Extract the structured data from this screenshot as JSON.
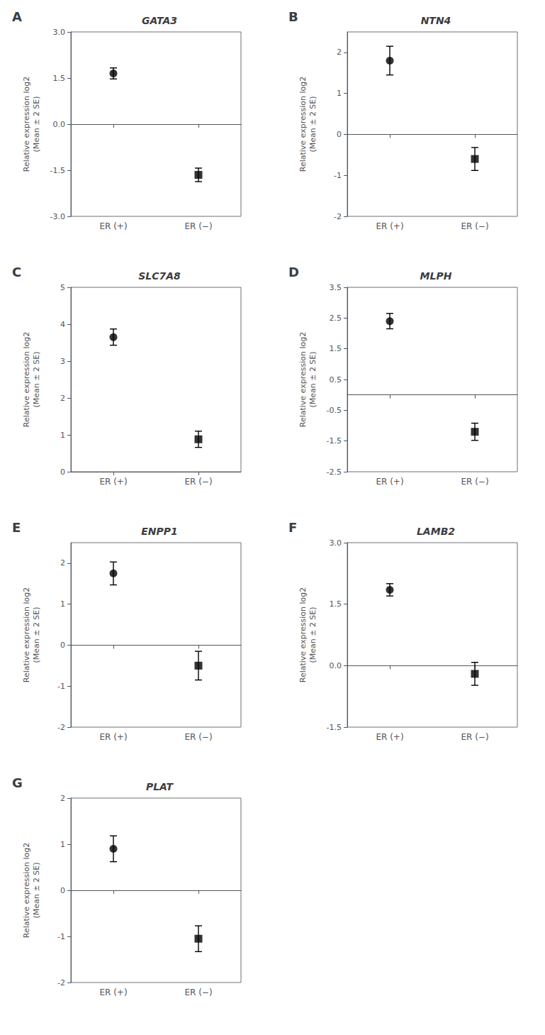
{
  "chart_data": [
    {
      "type": "scatter",
      "title": "GATA3",
      "annotations": [
        "A"
      ],
      "ylabel": "Relative expression log2\n(Mean ± 2 SE)",
      "categories": [
        "ER (+)",
        "ER (−)"
      ],
      "series": [
        {
          "values": [
            1.65,
            null
          ],
          "errors": [
            0.18,
            null
          ],
          "marker": "circle"
        },
        {
          "values": [
            null,
            -1.65
          ],
          "errors": [
            null,
            0.22
          ],
          "marker": "square"
        }
      ],
      "ylim": [
        -3.0,
        3.0
      ],
      "yticks": [
        {
          "value": -3.0,
          "label": "-3.0"
        },
        -1.5,
        {
          "value": 0.0,
          "label": "0.0"
        },
        1.5,
        {
          "value": 3.0,
          "label": "3.0"
        }
      ],
      "grid": false,
      "color": "black"
    },
    {
      "type": "scatter",
      "title": "NTN4",
      "annotations": [
        "B"
      ],
      "ylabel": "Relative expression log2\n(Mean ± 2 SE)",
      "categories": [
        "ER (+)",
        "ER (−)"
      ],
      "series": [
        {
          "values": [
            1.8,
            null
          ],
          "errors": [
            0.35,
            null
          ],
          "marker": "circle"
        },
        {
          "values": [
            null,
            -0.6
          ],
          "errors": [
            null,
            0.28
          ],
          "marker": "square"
        }
      ],
      "ylim": [
        -2.0,
        2.5
      ],
      "yticks": [
        -2,
        -1,
        0,
        1,
        2
      ],
      "grid": false,
      "color": "black"
    },
    {
      "type": "scatter",
      "title": "SLC7A8",
      "annotations": [
        "C"
      ],
      "ylabel": "Relative expression log2\n(Mean ± 2 SE)",
      "categories": [
        "ER (+)",
        "ER (−)"
      ],
      "series": [
        {
          "values": [
            3.65,
            null
          ],
          "errors": [
            0.22,
            null
          ],
          "marker": "circle"
        },
        {
          "values": [
            null,
            0.88
          ],
          "errors": [
            null,
            0.22
          ],
          "marker": "square"
        }
      ],
      "ylim": [
        0.0,
        5.0
      ],
      "yticks": [
        0,
        1,
        2,
        3,
        4,
        5
      ],
      "grid": false,
      "color": "black"
    },
    {
      "type": "scatter",
      "title": "MLPH",
      "annotations": [
        "D"
      ],
      "ylabel": "Relative expression log2\n(Mean ± 2 SE)",
      "categories": [
        "ER (+)",
        "ER (−)"
      ],
      "series": [
        {
          "values": [
            2.4,
            null
          ],
          "errors": [
            0.25,
            null
          ],
          "marker": "circle"
        },
        {
          "values": [
            null,
            -1.2
          ],
          "errors": [
            null,
            0.28
          ],
          "marker": "square"
        }
      ],
      "ylim": [
        -2.5,
        3.5
      ],
      "yticks": [
        -2.5,
        -1.5,
        -0.5,
        0.5,
        1.5,
        2.5,
        3.5
      ],
      "grid": false,
      "color": "black"
    },
    {
      "type": "scatter",
      "title": "ENPP1",
      "annotations": [
        "E"
      ],
      "ylabel": "Relative expression log2\n(Mean ± 2 SE)",
      "categories": [
        "ER (+)",
        "ER (−)"
      ],
      "series": [
        {
          "values": [
            1.75,
            null
          ],
          "errors": [
            0.28,
            null
          ],
          "marker": "circle"
        },
        {
          "values": [
            null,
            -0.5
          ],
          "errors": [
            null,
            0.35
          ],
          "marker": "square"
        }
      ],
      "ylim": [
        -2.0,
        2.5
      ],
      "yticks": [
        -2,
        -1,
        0,
        1,
        2
      ],
      "grid": false,
      "color": "black"
    },
    {
      "type": "scatter",
      "title": "LAMB2",
      "annotations": [
        "F"
      ],
      "ylabel": "Relative expression log2\n(Mean ± 2 SE)",
      "categories": [
        "ER (+)",
        "ER (−)"
      ],
      "series": [
        {
          "values": [
            1.85,
            null
          ],
          "errors": [
            0.15,
            null
          ],
          "marker": "circle"
        },
        {
          "values": [
            null,
            -0.2
          ],
          "errors": [
            null,
            0.28
          ],
          "marker": "square"
        }
      ],
      "ylim": [
        -1.5,
        3.0
      ],
      "yticks": [
        -1.5,
        {
          "value": 0.0,
          "label": "0.0"
        },
        1.5,
        {
          "value": 3.0,
          "label": "3.0"
        }
      ],
      "grid": false,
      "color": "black"
    },
    {
      "type": "scatter",
      "title": "PLAT",
      "annotations": [
        "G"
      ],
      "ylabel": "Relative expression log2\n(Mean ± 2 SE)",
      "categories": [
        "ER (+)",
        "ER (−)"
      ],
      "series": [
        {
          "values": [
            0.9,
            null
          ],
          "errors": [
            0.28,
            null
          ],
          "marker": "circle"
        },
        {
          "values": [
            null,
            -1.05
          ],
          "errors": [
            null,
            0.28
          ],
          "marker": "square"
        }
      ],
      "ylim": [
        -2.0,
        2.0
      ],
      "yticks": [
        -2,
        -1,
        0,
        1,
        2
      ],
      "grid": false,
      "color": "black"
    }
  ]
}
